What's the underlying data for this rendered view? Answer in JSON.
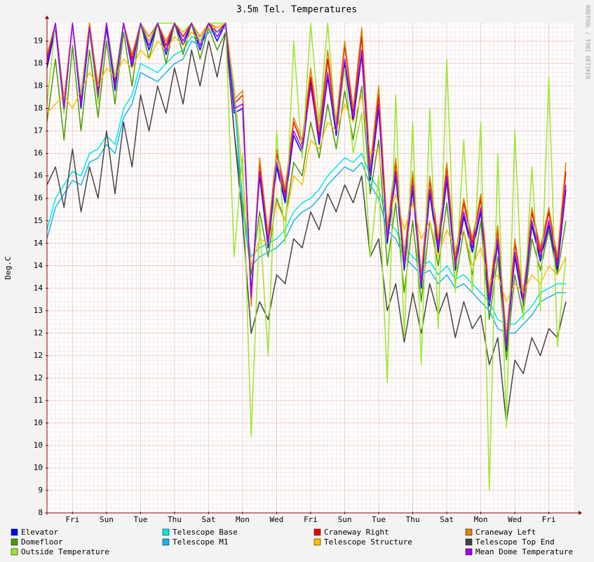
{
  "chart_data": {
    "type": "line",
    "title": "3.5m Tel. Temperatures",
    "y_label": "Deg.C",
    "watermark": "RRDTOOL / TOBI OETIKER",
    "xlim": [
      0,
      31
    ],
    "ylim": [
      8.5,
      19.4
    ],
    "grid": true,
    "xticks": [
      {
        "value": 1.5,
        "label": "Fri"
      },
      {
        "value": 3.5,
        "label": "Sun"
      },
      {
        "value": 5.5,
        "label": "Tue"
      },
      {
        "value": 7.5,
        "label": "Thu"
      },
      {
        "value": 9.5,
        "label": "Sat"
      },
      {
        "value": 11.5,
        "label": "Mon"
      },
      {
        "value": 13.5,
        "label": "Wed"
      },
      {
        "value": 15.5,
        "label": "Fri"
      },
      {
        "value": 17.5,
        "label": "Sun"
      },
      {
        "value": 19.5,
        "label": "Tue"
      },
      {
        "value": 21.5,
        "label": "Thu"
      },
      {
        "value": 23.5,
        "label": "Sat"
      },
      {
        "value": 25.5,
        "label": "Mon"
      },
      {
        "value": 27.5,
        "label": "Wed"
      },
      {
        "value": 29.5,
        "label": "Fri"
      }
    ],
    "yticks": [
      {
        "value": 8.5,
        "label": "8"
      },
      9,
      {
        "value": 9.5,
        "label": "10"
      },
      10,
      {
        "value": 10.5,
        "label": "10"
      },
      11,
      {
        "value": 11.5,
        "label": "12"
      },
      12,
      {
        "value": 12.5,
        "label": "12"
      },
      13,
      {
        "value": 13.5,
        "label": "14"
      },
      14,
      {
        "value": 14.5,
        "label": "14"
      },
      15,
      {
        "value": 15.5,
        "label": "16"
      },
      16,
      {
        "value": 16.5,
        "label": "16"
      },
      17,
      {
        "value": 17.5,
        "label": "18"
      },
      18,
      {
        "value": 18.5,
        "label": "18"
      },
      19
    ],
    "x": [
      0,
      0.5,
      1,
      1.5,
      2,
      2.5,
      3,
      3.5,
      4,
      4.5,
      5,
      5.5,
      6,
      6.5,
      7,
      7.5,
      8,
      8.5,
      9,
      9.5,
      10,
      10.5,
      11,
      11.5,
      12,
      12.5,
      13,
      13.5,
      14,
      14.5,
      15,
      15.5,
      16,
      16.5,
      17,
      17.5,
      18,
      18.5,
      19,
      19.5,
      20,
      20.5,
      21,
      21.5,
      22,
      22.5,
      23,
      23.5,
      24,
      24.5,
      25,
      25.5,
      26,
      26.5,
      27,
      27.5,
      28,
      28.5,
      29,
      29.5,
      30,
      30.5
    ],
    "series": [
      {
        "name": "Elevator",
        "color": "#0000ff",
        "values": [
          18.4,
          19.3,
          17.4,
          19.4,
          17.5,
          19.2,
          17.7,
          19.3,
          17.9,
          19.4,
          18.4,
          19.4,
          18.8,
          19.4,
          18.7,
          19.4,
          18.9,
          19.4,
          18.8,
          19.4,
          19.0,
          19.4,
          17.4,
          17.5,
          13.4,
          16.0,
          14.4,
          16.2,
          15.4,
          16.9,
          16.5,
          18.1,
          16.7,
          18.2,
          16.9,
          18.5,
          17.2,
          18.7,
          15.9,
          17.5,
          14.5,
          16.0,
          13.9,
          15.7,
          13.5,
          15.6,
          14.3,
          15.9,
          13.9,
          15.1,
          14.3,
          15.2,
          13.1,
          14.5,
          12.1,
          14.2,
          13.1,
          14.9,
          14.1,
          14.9,
          13.9,
          15.7
        ]
      },
      {
        "name": "Telescope Base",
        "color": "#00e8e8",
        "values": [
          14.8,
          15.5,
          15.8,
          16.1,
          16.0,
          16.5,
          16.6,
          16.9,
          16.7,
          17.5,
          17.8,
          18.5,
          18.4,
          18.3,
          18.5,
          18.7,
          18.8,
          19.1,
          19.0,
          19.3,
          19.3,
          19.4,
          18.0,
          15.4,
          14.2,
          14.4,
          14.5,
          14.6,
          14.8,
          15.2,
          15.4,
          15.5,
          15.7,
          16.0,
          16.2,
          16.4,
          16.3,
          16.5,
          16.0,
          15.7,
          15.0,
          14.8,
          14.4,
          14.2,
          14.0,
          14.1,
          13.8,
          14.0,
          13.7,
          13.8,
          13.6,
          13.4,
          13.2,
          12.8,
          12.7,
          12.7,
          12.9,
          13.1,
          13.4,
          13.5,
          13.6,
          13.6
        ]
      },
      {
        "name": "Craneway Right",
        "color": "#ee0000",
        "values": [
          18.6,
          19.4,
          17.6,
          19.4,
          17.7,
          19.4,
          17.9,
          19.4,
          18.1,
          19.4,
          18.6,
          19.4,
          19.0,
          19.4,
          18.9,
          19.4,
          19.1,
          19.4,
          19.0,
          19.4,
          19.2,
          19.4,
          17.6,
          17.8,
          13.2,
          16.3,
          14.6,
          16.5,
          15.6,
          17.2,
          16.7,
          18.2,
          16.9,
          18.6,
          17.1,
          18.9,
          17.4,
          19.1,
          16.1,
          17.8,
          14.7,
          16.3,
          14.1,
          16.0,
          13.7,
          15.9,
          14.5,
          16.2,
          14.1,
          15.4,
          14.5,
          15.5,
          13.3,
          14.8,
          12.3,
          14.5,
          13.3,
          15.2,
          14.3,
          15.2,
          14.1,
          16.1
        ]
      },
      {
        "name": "Craneway Left",
        "color": "#e08000",
        "values": [
          18.7,
          19.4,
          17.7,
          19.4,
          17.8,
          19.4,
          18.0,
          19.4,
          18.2,
          19.4,
          18.7,
          19.4,
          19.1,
          19.4,
          19.0,
          19.4,
          19.2,
          19.4,
          19.1,
          19.4,
          19.3,
          19.4,
          17.7,
          17.9,
          13.1,
          16.4,
          14.7,
          16.6,
          15.7,
          17.3,
          16.8,
          18.4,
          17.0,
          18.8,
          17.2,
          19.0,
          17.5,
          19.3,
          16.2,
          18.0,
          14.8,
          16.4,
          14.2,
          16.1,
          13.8,
          16.0,
          14.6,
          16.3,
          14.2,
          15.5,
          14.6,
          15.6,
          13.4,
          14.9,
          12.4,
          14.6,
          13.4,
          15.3,
          14.4,
          15.3,
          14.2,
          16.3
        ]
      },
      {
        "name": "Domefloor",
        "color": "#4c9c00",
        "values": [
          17.2,
          18.6,
          16.8,
          18.9,
          17.0,
          18.8,
          17.3,
          19.0,
          17.6,
          19.2,
          18.0,
          19.4,
          18.6,
          19.4,
          18.5,
          19.4,
          18.7,
          19.4,
          18.6,
          19.3,
          18.8,
          19.2,
          17.0,
          15.4,
          13.8,
          15.2,
          14.2,
          15.5,
          15.0,
          16.3,
          16.0,
          17.2,
          16.4,
          17.6,
          16.6,
          17.9,
          16.8,
          18.0,
          15.6,
          16.8,
          14.0,
          15.4,
          13.4,
          15.0,
          13.2,
          15.0,
          14.0,
          15.4,
          13.6,
          14.8,
          13.8,
          15.0,
          12.8,
          14.2,
          11.9,
          13.8,
          12.9,
          14.6,
          13.9,
          14.8,
          13.8,
          15.0
        ]
      },
      {
        "name": "Telescope M1",
        "color": "#1ab4f0",
        "values": [
          14.6,
          15.3,
          15.6,
          15.9,
          15.8,
          16.3,
          16.4,
          16.7,
          16.5,
          17.3,
          17.6,
          18.3,
          18.2,
          18.1,
          18.3,
          18.5,
          18.6,
          19.0,
          18.9,
          19.2,
          19.2,
          19.3,
          17.8,
          15.2,
          14.0,
          14.2,
          14.3,
          14.4,
          14.6,
          15.0,
          15.2,
          15.3,
          15.5,
          15.8,
          16.0,
          16.2,
          16.1,
          16.3,
          15.8,
          15.5,
          14.8,
          14.6,
          14.2,
          14.0,
          13.8,
          13.9,
          13.6,
          13.8,
          13.5,
          13.6,
          13.4,
          13.2,
          13.0,
          12.6,
          12.5,
          12.5,
          12.7,
          12.9,
          13.2,
          13.3,
          13.4,
          13.4
        ]
      },
      {
        "name": "Telescope Structure",
        "color": "#ffbe00",
        "values": [
          17.4,
          17.6,
          17.8,
          17.5,
          17.9,
          18.3,
          18.0,
          18.4,
          18.2,
          18.6,
          18.4,
          18.8,
          18.6,
          19.0,
          18.8,
          19.1,
          18.9,
          19.2,
          19.0,
          19.3,
          19.3,
          19.4,
          18.0,
          16.0,
          14.0,
          14.6,
          14.5,
          15.4,
          15.0,
          16.0,
          15.8,
          16.8,
          16.6,
          17.2,
          17.0,
          17.6,
          17.2,
          17.8,
          16.5,
          16.6,
          15.0,
          15.6,
          14.8,
          15.4,
          14.6,
          15.0,
          14.2,
          14.8,
          14.4,
          14.8,
          14.0,
          14.4,
          13.6,
          13.8,
          13.2,
          13.6,
          13.4,
          13.8,
          13.6,
          14.0,
          13.8,
          14.2
        ]
      },
      {
        "name": "Telescope Top End",
        "color": "#444444",
        "values": [
          15.8,
          16.2,
          15.3,
          16.6,
          15.2,
          16.2,
          15.5,
          17.0,
          15.6,
          17.2,
          16.2,
          17.8,
          17.0,
          18.0,
          17.4,
          18.4,
          17.6,
          18.8,
          18.0,
          19.0,
          18.2,
          19.2,
          17.0,
          15.0,
          12.5,
          13.2,
          12.8,
          13.8,
          13.6,
          14.6,
          14.4,
          15.2,
          14.8,
          15.6,
          15.2,
          15.8,
          15.4,
          16.0,
          14.2,
          14.6,
          13.0,
          13.6,
          12.3,
          13.4,
          12.5,
          13.6,
          12.9,
          13.4,
          12.4,
          13.2,
          12.6,
          12.9,
          11.8,
          12.4,
          10.5,
          11.9,
          11.6,
          12.4,
          12.0,
          12.6,
          12.4,
          13.2
        ]
      },
      {
        "name": "Outside Temperature",
        "color": "#9ae62a",
        "values": [
          17.6,
          19.4,
          17.4,
          19.4,
          17.8,
          19.2,
          17.6,
          19.4,
          18.2,
          19.4,
          18.5,
          19.4,
          19.0,
          19.4,
          19.4,
          19.4,
          19.2,
          19.4,
          19.0,
          19.4,
          19.4,
          19.4,
          14.2,
          16.5,
          10.2,
          15.0,
          12.0,
          17.0,
          14.5,
          19.0,
          16.4,
          19.4,
          17.2,
          19.4,
          17.0,
          18.4,
          16.5,
          17.4,
          14.2,
          16.0,
          11.4,
          17.8,
          12.4,
          17.2,
          11.8,
          17.5,
          12.6,
          18.6,
          13.4,
          16.8,
          13.4,
          17.2,
          9.0,
          16.5,
          10.4,
          17.0,
          12.8,
          16.2,
          13.0,
          18.2,
          12.2,
          14.2
        ]
      },
      {
        "name": "Mean Dome Temperature",
        "color": "#a000ff",
        "values": [
          18.5,
          19.4,
          17.5,
          19.4,
          17.6,
          19.3,
          17.8,
          19.4,
          18.0,
          19.4,
          18.5,
          19.4,
          18.9,
          19.4,
          18.8,
          19.4,
          19.0,
          19.4,
          18.9,
          19.4,
          19.1,
          19.4,
          17.5,
          17.6,
          13.3,
          16.1,
          14.5,
          16.3,
          15.5,
          17.0,
          16.6,
          18.0,
          16.8,
          18.3,
          17.0,
          18.6,
          17.3,
          18.8,
          16.0,
          17.6,
          14.6,
          16.1,
          14.0,
          15.8,
          13.6,
          15.7,
          14.4,
          16.0,
          14.0,
          15.2,
          14.4,
          15.3,
          13.2,
          14.6,
          12.2,
          14.3,
          13.2,
          15.0,
          14.2,
          15.0,
          14.0,
          15.8
        ]
      }
    ]
  }
}
